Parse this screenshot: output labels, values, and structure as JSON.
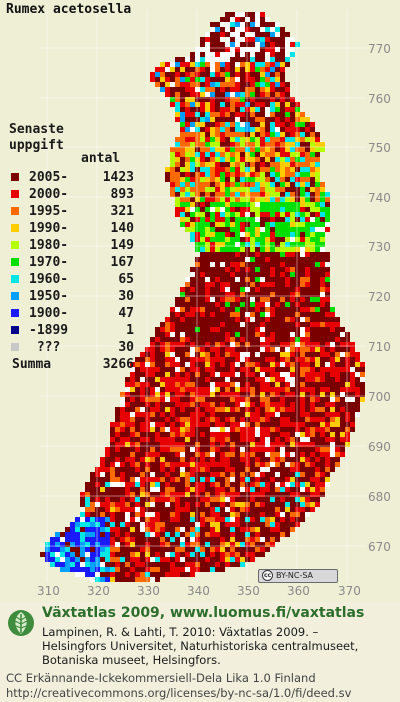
{
  "map": {
    "species": "Rumex acetosella",
    "legend_heading": [
      "Senaste",
      "uppgift"
    ],
    "count_header": "antal",
    "legend": [
      {
        "label": "2005-",
        "count": "1423",
        "color": "#7a0000"
      },
      {
        "label": "2000-",
        "count": "893",
        "color": "#e60000"
      },
      {
        "label": "1995-",
        "count": "321",
        "color": "#ff6a00"
      },
      {
        "label": "1990-",
        "count": "140",
        "color": "#ffcc00"
      },
      {
        "label": "1980-",
        "count": "149",
        "color": "#b4ff00"
      },
      {
        "label": "1970-",
        "count": "167",
        "color": "#00e000"
      },
      {
        "label": "1960-",
        "count": "65",
        "color": "#00e6e6"
      },
      {
        "label": "1950-",
        "count": "30",
        "color": "#00a0ff"
      },
      {
        "label": "1900-",
        "count": "47",
        "color": "#1a1aff"
      },
      {
        "label": "-1899",
        "count": "1",
        "color": "#00008b"
      },
      {
        "label": " ???",
        "count": "30",
        "color": "#c8c8c8"
      }
    ],
    "summa": {
      "label": "Summa",
      "count": "3266"
    },
    "y_axis": [
      "770",
      "760",
      "750",
      "740",
      "730",
      "720",
      "710",
      "700",
      "690",
      "680",
      "670"
    ],
    "x_axis": [
      "310",
      "320",
      "330",
      "340",
      "350",
      "360",
      "370"
    ],
    "cc_badge": "BY-NC-SA",
    "cc_mark": "cc"
  },
  "footer": {
    "title": "Växtatlas 2009, www.luomus.fi/vaxtatlas",
    "citation": [
      "Lampinen, R. & Lahti, T. 2010: Växtatlas 2009. –",
      "Helsingfors Universitet, Naturhistoriska centralmuseet,",
      "Botaniska museet, Helsingfors."
    ],
    "license": [
      "CC Erkännande-Ickekommersiell-Dela Lika 1.0 Finland",
      "http://creativecommons.org/licenses/by-nc-sa/1.0/fi/deed.sv"
    ]
  }
}
